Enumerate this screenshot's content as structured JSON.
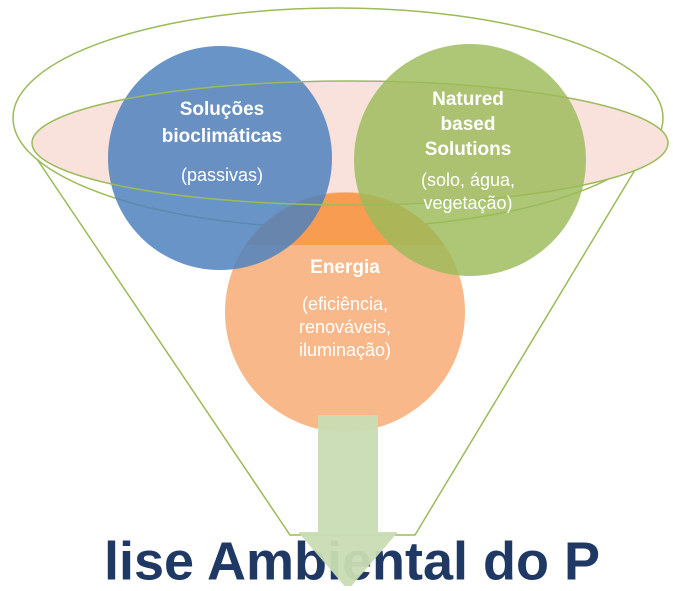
{
  "nodes": [
    {
      "title": [
        "Energia"
      ],
      "detail": [
        "(eficiência,",
        "renováveis,",
        "iluminação)"
      ]
    },
    {
      "title": [
        "Soluções",
        "bioclimáticas"
      ],
      "detail": [
        "(passivas)"
      ]
    },
    {
      "title": [
        "Natured",
        "based",
        "Solutions"
      ],
      "detail": [
        "(solo, água,",
        "vegetação)"
      ]
    }
  ],
  "footer": {
    "title": "lise Ambiental do P"
  }
}
